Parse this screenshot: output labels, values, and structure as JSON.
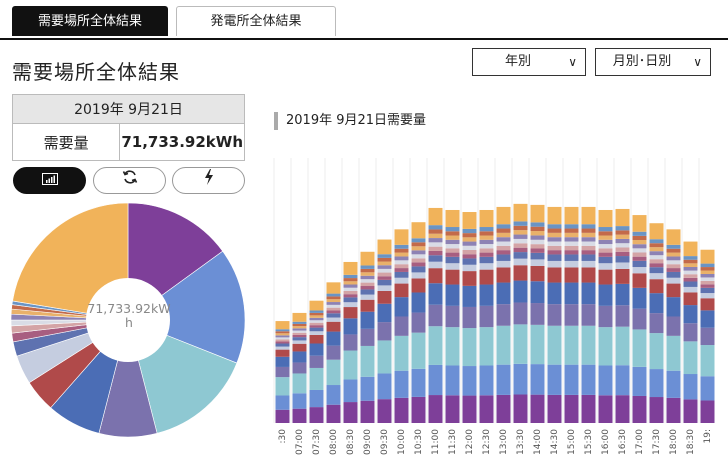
{
  "tabs": [
    {
      "label": "需要場所全体結果",
      "active": true
    },
    {
      "label": "発電所全体結果",
      "active": false
    }
  ],
  "page_title": "需要場所全体結果",
  "dropdowns": {
    "period": "年別",
    "granularity": "月別･日別"
  },
  "summary": {
    "date": "2019年 9月21日",
    "key": "需要量",
    "value": "71,733.92kWh"
  },
  "view_buttons": [
    {
      "icon": "bar-chart-icon",
      "active": true
    },
    {
      "icon": "refresh-icon",
      "active": false
    },
    {
      "icon": "power-icon",
      "active": false
    }
  ],
  "pie_center": "71,733.92kWh",
  "chart_title": "2019年 9月21日需要量",
  "colors": {
    "segments": [
      "#7e3f99",
      "#6b8fd5",
      "#8ec8d2",
      "#7b72ad",
      "#4b6db5",
      "#b04a4a",
      "#c5cde0",
      "#5e72b0",
      "#a85e80",
      "#d4a4a6",
      "#d9dce6",
      "#8d82b4",
      "#e9b16a",
      "#c36a4a",
      "#6a94c4",
      "#f1b35a"
    ],
    "accent_tab": "#111111"
  },
  "chart_data": [
    {
      "type": "pie",
      "values": [
        15.0,
        16.0,
        15.0,
        8.0,
        7.5,
        4.5,
        4.0,
        2.0,
        1.2,
        1.0,
        0.8,
        0.8,
        0.7,
        0.6,
        0.5,
        22.4
      ]
    },
    {
      "type": "bar",
      "stacked": true,
      "categories": [
        ":30",
        "07:00",
        "07:30",
        "08:00",
        "08:30",
        "09:00",
        "09:30",
        "10:00",
        "10:30",
        "11:00",
        "11:30",
        "12:00",
        "12:30",
        "13:00",
        "13:30",
        "14:00",
        "14:30",
        "15:00",
        "15:30",
        "16:00",
        "16:30",
        "17:00",
        "17:30",
        "18:00",
        "18:30",
        "19:"
      ],
      "totals": [
        100,
        108,
        120,
        138,
        158,
        168,
        180,
        190,
        197,
        211,
        209,
        207,
        209,
        212,
        215,
        214,
        212,
        212,
        212,
        209,
        210,
        204,
        196,
        190,
        178,
        170
      ],
      "ylim": [
        0,
        260
      ],
      "grid": true
    }
  ]
}
